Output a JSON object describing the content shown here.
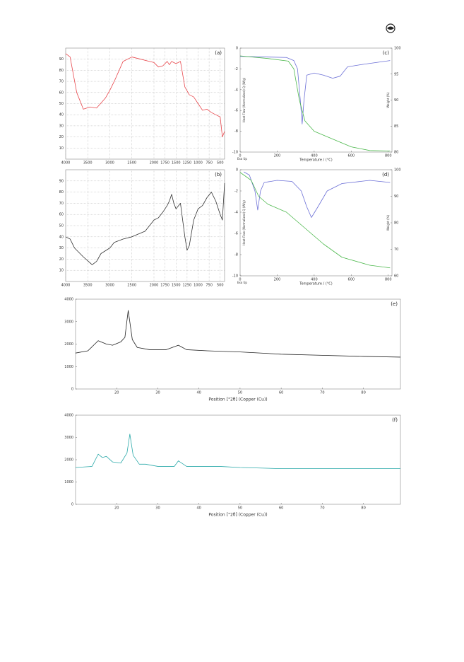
{
  "chart_data": [
    {
      "type": "line",
      "label": "(a)",
      "grid": true,
      "x_tick_spacing": "even",
      "xlim": [
        4000,
        400
      ],
      "xticks": [
        4000,
        3500,
        3000,
        2500,
        2000,
        1750,
        1500,
        1250,
        1000,
        750,
        500
      ],
      "ylim": [
        0,
        100
      ],
      "yticks": [
        10,
        20,
        30,
        40,
        50,
        60,
        70,
        80,
        90
      ],
      "series": [
        {
          "color": "#e8474c",
          "x": [
            4000,
            3900,
            3750,
            3600,
            3450,
            3300,
            3100,
            3000,
            2900,
            2700,
            2500,
            2300,
            2100,
            2000,
            1900,
            1800,
            1700,
            1650,
            1600,
            1500,
            1400,
            1300,
            1200,
            1100,
            1000,
            900,
            800,
            700,
            600,
            500,
            450,
            400
          ],
          "values": [
            95,
            92,
            60,
            45,
            47,
            46,
            55,
            62,
            70,
            88,
            92,
            90,
            88,
            87,
            83,
            84,
            88,
            85,
            88,
            86,
            88,
            65,
            58,
            56,
            50,
            44,
            45,
            42,
            40,
            38,
            20,
            25
          ]
        }
      ]
    },
    {
      "type": "line",
      "label": "(b)",
      "grid": true,
      "x_tick_spacing": "even",
      "xlim": [
        4000,
        400
      ],
      "xticks": [
        4000,
        3500,
        3000,
        2500,
        2000,
        1750,
        1500,
        1250,
        1000,
        750,
        500
      ],
      "ylim": [
        0,
        100
      ],
      "yticks": [
        10,
        20,
        30,
        40,
        50,
        60,
        70,
        80,
        90
      ],
      "series": [
        {
          "color": "#333333",
          "x": [
            4000,
            3900,
            3800,
            3600,
            3400,
            3300,
            3200,
            3000,
            2900,
            2700,
            2500,
            2200,
            2000,
            1900,
            1800,
            1700,
            1650,
            1600,
            1550,
            1500,
            1400,
            1300,
            1250,
            1200,
            1100,
            1000,
            900,
            800,
            700,
            600,
            500,
            450,
            400
          ],
          "values": [
            40,
            38,
            30,
            22,
            15,
            18,
            25,
            30,
            35,
            38,
            40,
            45,
            55,
            57,
            62,
            68,
            72,
            78,
            70,
            65,
            70,
            40,
            28,
            32,
            55,
            65,
            68,
            75,
            80,
            72,
            60,
            55,
            88
          ]
        }
      ]
    },
    {
      "type": "line",
      "label": "(c)",
      "xlabel": "Temperature / (°C)",
      "ylabel": "Heat Flow (Normalized) Q (W/g)",
      "y2label": "Weight (%)",
      "note": "Exo Up",
      "xlim": [
        0,
        820
      ],
      "xticks": [
        0,
        200,
        400,
        600,
        800
      ],
      "ylim": [
        -10,
        0
      ],
      "yticks": [
        0,
        -2,
        -4,
        -6,
        -8,
        -10
      ],
      "y2lim": [
        80,
        100
      ],
      "y2ticks": [
        100,
        95,
        90,
        85,
        80
      ],
      "series": [
        {
          "color": "#6b6fd6",
          "x": [
            0,
            250,
            290,
            310,
            325,
            335,
            345,
            360,
            400,
            450,
            500,
            540,
            580,
            650,
            810
          ],
          "values": [
            -0.8,
            -0.9,
            -1.2,
            -2,
            -5,
            -7.3,
            -5,
            -2.6,
            -2.4,
            -2.6,
            -2.9,
            -2.7,
            -1.8,
            -1.6,
            -1.2
          ]
        },
        {
          "color": "#4cb84c",
          "axis": "y2",
          "x": [
            0,
            150,
            260,
            290,
            320,
            350,
            400,
            500,
            600,
            700,
            810
          ],
          "values": [
            98.5,
            98,
            97.5,
            96,
            90,
            86,
            84,
            82.5,
            81,
            80.3,
            80.2
          ]
        }
      ]
    },
    {
      "type": "line",
      "label": "(d)",
      "xlabel": "Temperature / (°C)",
      "ylabel": "Heat Flow (Normalized) Q (W/g)",
      "y2label": "Weight (%)",
      "note": "Exo Up",
      "xlim": [
        0,
        820
      ],
      "xticks": [
        0,
        200,
        400,
        600,
        800
      ],
      "ylim": [
        -10,
        0
      ],
      "yticks": [
        0,
        -2,
        -4,
        -6,
        -8,
        -10
      ],
      "y2lim": [
        60,
        100
      ],
      "y2ticks": [
        100,
        90,
        80,
        70,
        60
      ],
      "series": [
        {
          "color": "#6b6fd6",
          "x": [
            20,
            50,
            80,
            95,
            110,
            130,
            200,
            280,
            330,
            360,
            385,
            420,
            470,
            550,
            700,
            810
          ],
          "values": [
            -0.2,
            -0.5,
            -2,
            -3.8,
            -2,
            -1.2,
            -1,
            -1.1,
            -2,
            -3.5,
            -4.5,
            -3.5,
            -2,
            -1.3,
            -1,
            -1.2
          ]
        },
        {
          "color": "#4cb84c",
          "axis": "y2",
          "x": [
            0,
            60,
            100,
            150,
            250,
            350,
            450,
            550,
            700,
            810
          ],
          "values": [
            99,
            96,
            90,
            87,
            84,
            78,
            72,
            67,
            64,
            63
          ]
        }
      ]
    },
    {
      "type": "line",
      "label": "(e)",
      "xlabel": "Position [°2θ] (Copper (Cu))",
      "xlim": [
        10,
        89
      ],
      "xticks": [
        20,
        30,
        40,
        50,
        60,
        70,
        80
      ],
      "ylim": [
        0,
        4000
      ],
      "yticks": [
        0,
        1000,
        2000,
        3000,
        4000
      ],
      "series": [
        {
          "color": "#222222",
          "x": [
            10,
            13,
            15.5,
            17.5,
            19,
            21,
            22,
            22.8,
            23.8,
            25,
            28,
            32,
            35,
            37,
            42,
            50,
            60,
            70,
            80,
            89
          ],
          "values": [
            1600,
            1700,
            2150,
            2000,
            1950,
            2100,
            2300,
            3500,
            2200,
            1850,
            1750,
            1750,
            1950,
            1750,
            1700,
            1650,
            1550,
            1500,
            1450,
            1420
          ]
        }
      ]
    },
    {
      "type": "line",
      "label": "(f)",
      "xlabel": "Position [°2θ] (Copper (Cu))",
      "xlim": [
        10,
        89
      ],
      "xticks": [
        20,
        30,
        40,
        50,
        60,
        70,
        80
      ],
      "ylim": [
        0,
        4000
      ],
      "yticks": [
        0,
        1000,
        2000,
        3000,
        4000
      ],
      "series": [
        {
          "color": "#2aa9a9",
          "x": [
            10,
            14,
            15.5,
            16.5,
            17.5,
            19,
            21,
            22.5,
            23.2,
            24,
            25.5,
            27,
            30,
            34,
            35,
            37,
            45,
            50,
            60,
            89
          ],
          "values": [
            1650,
            1700,
            2250,
            2100,
            2150,
            1900,
            1850,
            2300,
            3150,
            2200,
            1800,
            1800,
            1700,
            1700,
            1950,
            1700,
            1700,
            1650,
            1600,
            1600
          ]
        }
      ]
    }
  ]
}
